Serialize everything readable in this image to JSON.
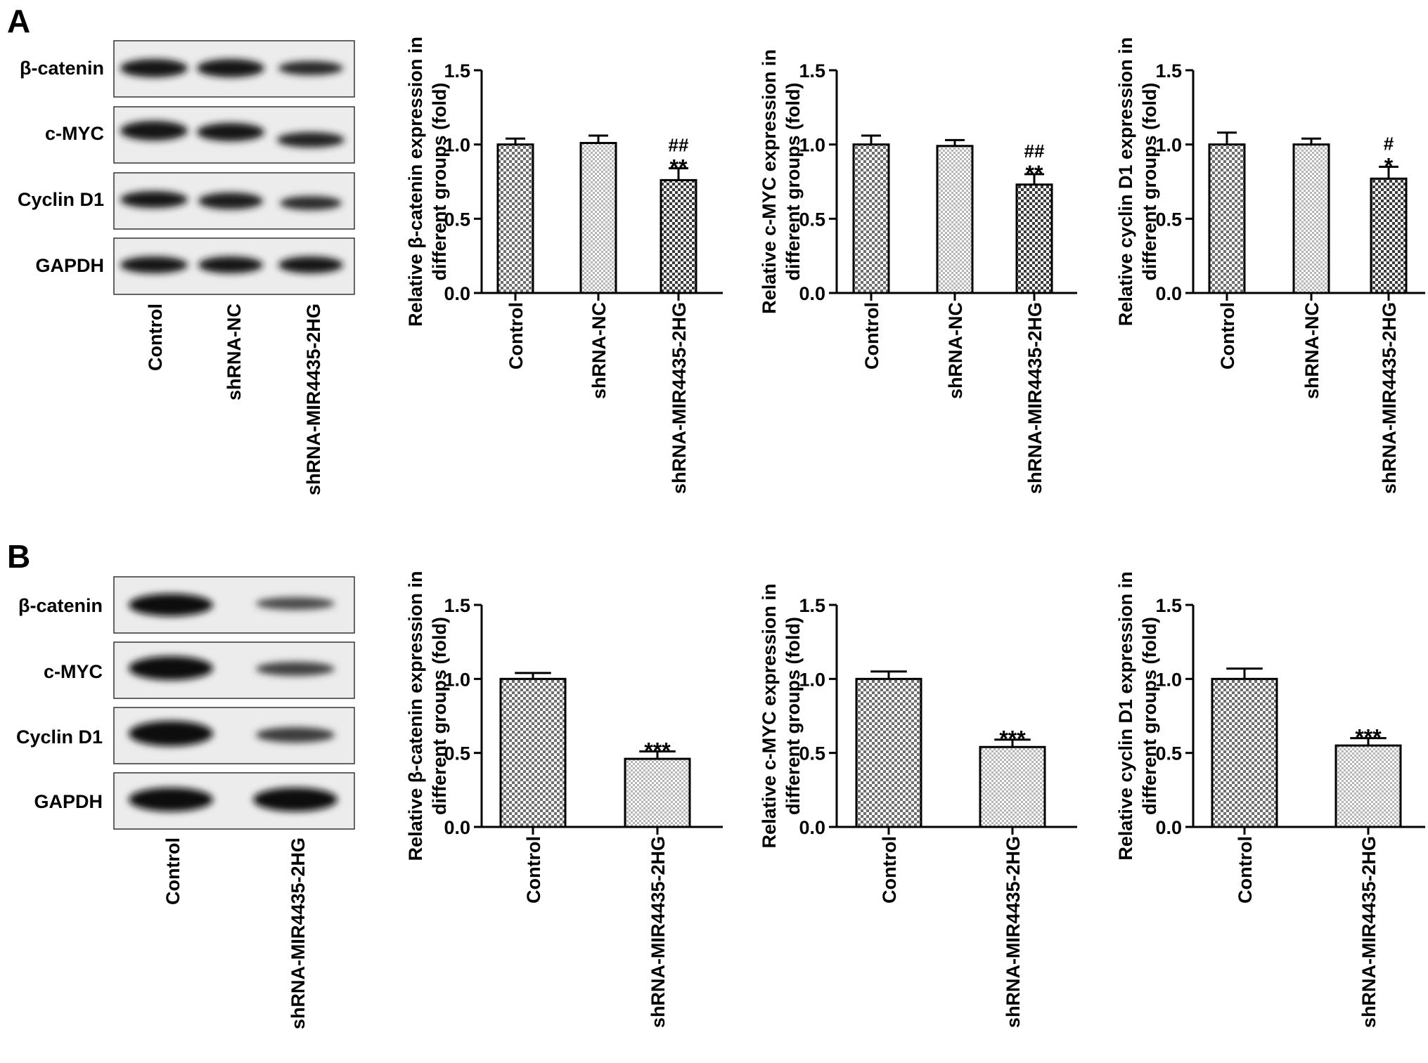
{
  "panels": [
    {
      "letter": "A",
      "blot": {
        "rows": [
          "β-catenin",
          "c-MYC",
          "Cyclin D1",
          "GAPDH"
        ],
        "lanes": [
          "Control",
          "shRNA-NC",
          "shRNA-MIR4435-2HG"
        ]
      }
    },
    {
      "letter": "B",
      "blot": {
        "rows": [
          "β-catenin",
          "c-MYC",
          "Cyclin D1",
          "GAPDH"
        ],
        "lanes": [
          "Control",
          "shRNA-MIR4435-2HG"
        ]
      }
    }
  ],
  "chart_data": [
    {
      "type": "bar",
      "panel": "A",
      "categories": [
        "Control",
        "shRNA-NC",
        "shRNA-MIR4435-2HG"
      ],
      "values": [
        1.0,
        1.01,
        0.76
      ],
      "errors": [
        0.04,
        0.05,
        0.08
      ],
      "annotations": [
        "",
        "",
        "**\n##"
      ],
      "ylabel": [
        "Relative β-catenin expression in",
        "different groups (fold)"
      ],
      "ylim": [
        0,
        1.5
      ],
      "yticks": [
        "0.0",
        "0.5",
        "1.0",
        "1.5"
      ]
    },
    {
      "type": "bar",
      "panel": "A",
      "categories": [
        "Control",
        "shRNA-NC",
        "shRNA-MIR4435-2HG"
      ],
      "values": [
        1.0,
        0.99,
        0.73
      ],
      "errors": [
        0.06,
        0.04,
        0.07
      ],
      "annotations": [
        "",
        "",
        "**\n##"
      ],
      "ylabel": [
        "Relative c-MYC expression in",
        "different groups (fold)"
      ],
      "ylim": [
        0,
        1.5
      ],
      "yticks": [
        "0.0",
        "0.5",
        "1.0",
        "1.5"
      ]
    },
    {
      "type": "bar",
      "panel": "A",
      "categories": [
        "Control",
        "shRNA-NC",
        "shRNA-MIR4435-2HG"
      ],
      "values": [
        1.0,
        1.0,
        0.77
      ],
      "errors": [
        0.08,
        0.04,
        0.08
      ],
      "annotations": [
        "",
        "",
        "*\n#"
      ],
      "ylabel": [
        "Relative cyclin D1 expression in",
        "different groups (fold)"
      ],
      "ylim": [
        0,
        1.5
      ],
      "yticks": [
        "0.0",
        "0.5",
        "1.0",
        "1.5"
      ]
    },
    {
      "type": "bar",
      "panel": "B",
      "categories": [
        "Control",
        "shRNA-MIR4435-2HG"
      ],
      "values": [
        1.0,
        0.46
      ],
      "errors": [
        0.04,
        0.05
      ],
      "annotations": [
        "",
        "***"
      ],
      "ylabel": [
        "Relative β-catenin expression in",
        "different groups (fold)"
      ],
      "ylim": [
        0,
        1.5
      ],
      "yticks": [
        "0.0",
        "0.5",
        "1.0",
        "1.5"
      ]
    },
    {
      "type": "bar",
      "panel": "B",
      "categories": [
        "Control",
        "shRNA-MIR4435-2HG"
      ],
      "values": [
        1.0,
        0.54
      ],
      "errors": [
        0.05,
        0.05
      ],
      "annotations": [
        "",
        "***"
      ],
      "ylabel": [
        "Relative c-MYC expression in",
        "different groups (fold)"
      ],
      "ylim": [
        0,
        1.5
      ],
      "yticks": [
        "0.0",
        "0.5",
        "1.0",
        "1.5"
      ]
    },
    {
      "type": "bar",
      "panel": "B",
      "categories": [
        "Control",
        "shRNA-MIR4435-2HG"
      ],
      "values": [
        1.0,
        0.55
      ],
      "errors": [
        0.07,
        0.05
      ],
      "annotations": [
        "",
        "***"
      ],
      "ylabel": [
        "Relative cyclin D1 expression in",
        "different groups (fold)"
      ],
      "ylim": [
        0,
        1.5
      ],
      "yticks": [
        "0.0",
        "0.5",
        "1.0",
        "1.5"
      ]
    }
  ]
}
